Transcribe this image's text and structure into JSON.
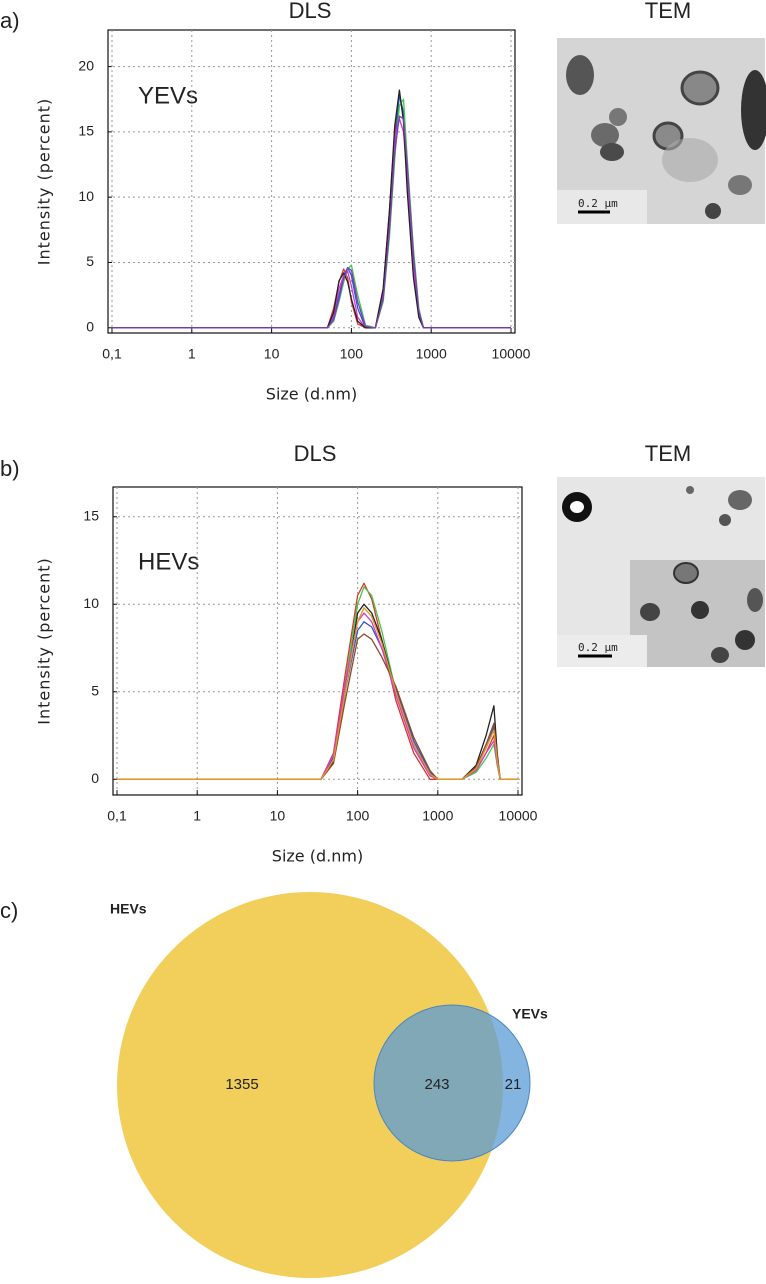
{
  "panel_labels": [
    "a)",
    "b)",
    "c)"
  ],
  "chart_data": [
    {
      "type": "line",
      "title": "DLS",
      "annotation": "YEVs",
      "xlabel": "Size (d.nm)",
      "ylabel": "Intensity (percent)",
      "xscale": "log",
      "grid": true,
      "xlim": [
        0.1,
        10000
      ],
      "ylim": [
        -0.4,
        22.8
      ],
      "xticks": [
        {
          "value": 0.1,
          "label": "0,1"
        },
        1,
        10,
        100,
        1000,
        10000
      ],
      "yticks": [
        0,
        5,
        10,
        15,
        20
      ],
      "x": [
        0.1,
        50,
        60,
        70,
        80,
        90,
        100,
        120,
        150,
        200,
        250,
        300,
        350,
        400,
        450,
        500,
        600,
        700,
        800,
        10000
      ],
      "series": [
        {
          "color": "#d9362b",
          "values": [
            0,
            0,
            1.5,
            3.5,
            4.5,
            3.8,
            2,
            0.3,
            0,
            0,
            3,
            9,
            15,
            18,
            16,
            11,
            4,
            1,
            0,
            0
          ]
        },
        {
          "color": "#2f54d6",
          "values": [
            0,
            0,
            0.8,
            2.5,
            4,
            4.6,
            4,
            1.5,
            0,
            0,
            2.5,
            8,
            14,
            17.8,
            16.5,
            12,
            5,
            1.2,
            0,
            0
          ]
        },
        {
          "color": "#3fc94a",
          "values": [
            0,
            0,
            0.5,
            2,
            3.5,
            4.5,
            4.8,
            2.5,
            0.2,
            0,
            2,
            7,
            13,
            17,
            17.5,
            13,
            6,
            1.5,
            0,
            0
          ]
        },
        {
          "color": "#d63ad0",
          "values": [
            0,
            0,
            1,
            3,
            4,
            4.3,
            3.2,
            0.8,
            0,
            0,
            2.8,
            8.5,
            14.5,
            16,
            15,
            11.5,
            4.5,
            1,
            0,
            0
          ]
        },
        {
          "color": "#222222",
          "values": [
            0,
            0,
            1.2,
            3.6,
            4.2,
            3.5,
            2.2,
            0.5,
            0,
            0,
            3,
            9,
            15.5,
            18.2,
            15.8,
            10.5,
            3.8,
            0.8,
            0,
            0
          ]
        },
        {
          "color": "#7b3fb8",
          "values": [
            0,
            0,
            0.6,
            2.2,
            3.8,
            4.6,
            4.4,
            2,
            0.1,
            0,
            2.2,
            7.5,
            13.5,
            16.2,
            16,
            12.5,
            5.5,
            1.3,
            0,
            0
          ]
        }
      ]
    },
    {
      "type": "line",
      "title": "DLS",
      "annotation": "HEVs",
      "xlabel": "Size (d.nm)",
      "ylabel": "Intensity (percent)",
      "xscale": "log",
      "grid": true,
      "xlim": [
        0.1,
        10000
      ],
      "ylim": [
        -0.9,
        16.7
      ],
      "xticks": [
        {
          "value": 0.1,
          "label": "0,1"
        },
        1,
        10,
        100,
        1000,
        10000
      ],
      "yticks": [
        0,
        5,
        10,
        15
      ],
      "x": [
        0.1,
        35,
        50,
        70,
        100,
        120,
        150,
        200,
        300,
        500,
        800,
        1000,
        2000,
        3000,
        4000,
        5000,
        5500,
        6000,
        10000
      ],
      "series": [
        {
          "color": "#d9362b",
          "values": [
            0,
            0,
            1.5,
            6,
            10.5,
            11.2,
            10.3,
            8,
            4.5,
            1.5,
            0,
            0,
            0,
            0.5,
            1.5,
            2.5,
            1,
            0,
            0
          ]
        },
        {
          "color": "#3fc94a",
          "values": [
            0,
            0,
            1.2,
            5.5,
            10,
            11,
            10.5,
            8.5,
            5,
            1.8,
            0.2,
            0,
            0,
            0.4,
            1.2,
            2,
            0.8,
            0,
            0
          ]
        },
        {
          "color": "#222222",
          "values": [
            0,
            0,
            1,
            5,
            9.5,
            10,
            9.5,
            8,
            5,
            2,
            0.3,
            0,
            0,
            0.8,
            2.5,
            4.2,
            1.5,
            0,
            0
          ]
        },
        {
          "color": "#2f54d6",
          "values": [
            0,
            0,
            1.3,
            5,
            8.5,
            9,
            8.7,
            7.5,
            5.2,
            2.2,
            0.4,
            0,
            0,
            0.6,
            1.8,
            3,
            1.2,
            0,
            0
          ]
        },
        {
          "color": "#d63ad0",
          "values": [
            0,
            0,
            1.4,
            5.5,
            9,
            9.5,
            9,
            7.5,
            4.8,
            1.8,
            0.2,
            0,
            0,
            0.5,
            1.5,
            2.2,
            0.9,
            0,
            0
          ]
        },
        {
          "color": "#8a4b2a",
          "values": [
            0,
            0,
            0.9,
            4.5,
            8,
            8.3,
            8,
            7,
            5.3,
            2.4,
            0.5,
            0,
            0,
            0.7,
            2,
            3.2,
            1.3,
            0,
            0
          ]
        },
        {
          "color": "#e09a1f",
          "values": [
            0,
            0,
            1.1,
            5,
            9,
            9.8,
            9.3,
            7.8,
            5,
            2,
            0.3,
            0,
            0,
            0.6,
            1.8,
            2.8,
            1.1,
            0,
            0
          ]
        }
      ]
    }
  ],
  "tem": [
    {
      "title": "TEM",
      "scale_bar": "0.2 µm"
    },
    {
      "title": "TEM",
      "scale_bar": "0.2 µm"
    }
  ],
  "venn": {
    "sets": [
      {
        "name": "HEVs",
        "color": "#f2cf5a"
      },
      {
        "name": "YEVs",
        "color": "#5b9bd5"
      }
    ],
    "counts": [
      1355,
      243,
      21
    ]
  }
}
